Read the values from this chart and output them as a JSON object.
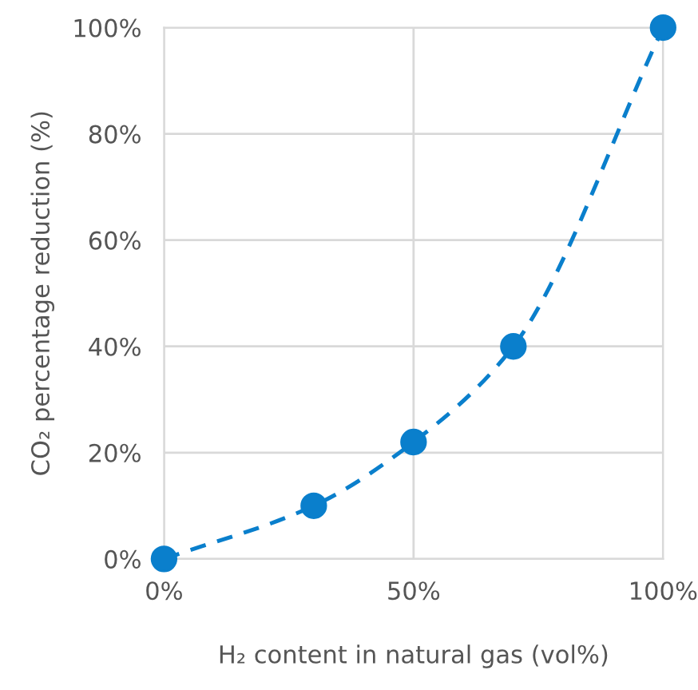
{
  "chart_data": {
    "type": "line",
    "xlabel": "H₂ content in natural gas (vol%)",
    "ylabel": "CO₂ percentage reduction (%)",
    "x": [
      0,
      30,
      50,
      70,
      100
    ],
    "series": [
      {
        "color": "#0a7fcc",
        "values": [
          0,
          10,
          22,
          40,
          100
        ]
      }
    ],
    "xlim": [
      0,
      100
    ],
    "ylim": [
      0,
      100
    ],
    "xticks": [
      {
        "value": 0,
        "label": "0%"
      },
      {
        "value": 50,
        "label": "50%"
      },
      {
        "value": 100,
        "label": "100%"
      }
    ],
    "yticks": [
      {
        "value": 0,
        "label": "0%"
      },
      {
        "value": 20,
        "label": "20%"
      },
      {
        "value": 40,
        "label": "40%"
      },
      {
        "value": 60,
        "label": "60%"
      },
      {
        "value": 80,
        "label": "80%"
      },
      {
        "value": 100,
        "label": "100%"
      }
    ],
    "grid": true,
    "marker": "circle",
    "line_style": "dashed",
    "legend": false
  }
}
